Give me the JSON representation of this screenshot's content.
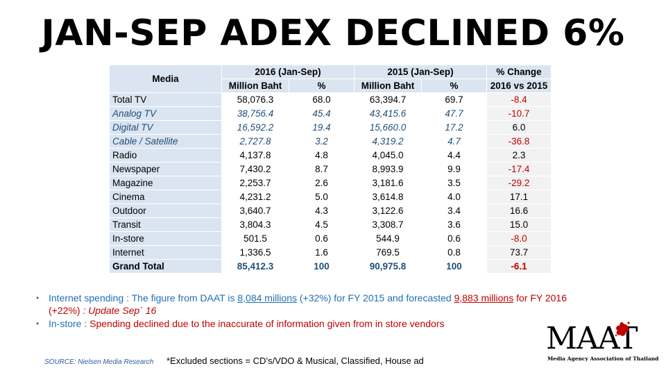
{
  "title": "JAN-SEP ADEX DECLINED 6%",
  "table": {
    "media_header": "Media",
    "group_2016": "2016 (Jan-Sep)",
    "group_2015": "2015 (Jan-Sep)",
    "change_header_1": "% Change",
    "change_header_2": "2016 vs 2015",
    "sub_million": "Million Baht",
    "sub_pct": "%",
    "rows": [
      {
        "media": "Total TV",
        "mb2016": "58,076.3",
        "p2016": "68.0",
        "mb2015": "63,394.7",
        "p2015": "69.7",
        "chg": "-8.4"
      },
      {
        "media": "Analog TV",
        "mb2016": "38,756.4",
        "p2016": "45.4",
        "mb2015": "43,415.6",
        "p2015": "47.7",
        "chg": "-10.7"
      },
      {
        "media": "Digital TV",
        "mb2016": "16,592.2",
        "p2016": "19.4",
        "mb2015": "15,660.0",
        "p2015": "17.2",
        "chg": "6.0"
      },
      {
        "media": "Cable / Satellite",
        "mb2016": "2,727.8",
        "p2016": "3.2",
        "mb2015": "4,319.2",
        "p2015": "4.7",
        "chg": "-36.8"
      },
      {
        "media": "Radio",
        "mb2016": "4,137.8",
        "p2016": "4.8",
        "mb2015": "4,045.0",
        "p2015": "4.4",
        "chg": "2.3"
      },
      {
        "media": "Newspaper",
        "mb2016": "7,430.2",
        "p2016": "8.7",
        "mb2015": "8,993.9",
        "p2015": "9.9",
        "chg": "-17.4"
      },
      {
        "media": "Magazine",
        "mb2016": "2,253.7",
        "p2016": "2.6",
        "mb2015": "3,181.6",
        "p2015": "3.5",
        "chg": "-29.2"
      },
      {
        "media": "Cinema",
        "mb2016": "4,231.2",
        "p2016": "5.0",
        "mb2015": "3,614.8",
        "p2015": "4.0",
        "chg": "17.1"
      },
      {
        "media": "Outdoor",
        "mb2016": "3,640.7",
        "p2016": "4.3",
        "mb2015": "3,122.6",
        "p2015": "3.4",
        "chg": "16.6"
      },
      {
        "media": "Transit",
        "mb2016": "3,804.3",
        "p2016": "4.5",
        "mb2015": "3,308.7",
        "p2015": "3.6",
        "chg": "15.0"
      },
      {
        "media": "In-store",
        "mb2016": "501.5",
        "p2016": "0.6",
        "mb2015": "544.9",
        "p2015": "0.6",
        "chg": "-8.0"
      },
      {
        "media": "Internet",
        "mb2016": "1,336.5",
        "p2016": "1.6",
        "mb2015": "769.5",
        "p2015": "0.8",
        "chg": "73.7"
      },
      {
        "media": "Grand Total",
        "mb2016": "85,412.3",
        "p2016": "100",
        "mb2015": "90,975.8",
        "p2015": "100",
        "chg": "-6.1"
      }
    ]
  },
  "notes": {
    "internet_label": "Internet spending",
    "internet_sep": " : The figure from DAAT is ",
    "internet_fig2015": "8,084 millions",
    "internet_mid": "  (+32%) for FY 2015 and forecasted ",
    "internet_fig2016": "9,883 millions",
    "internet_end": "  for FY 2016",
    "internet_line2": "(+22%) ",
    "internet_update": ": Update Sep´ 16",
    "instore_label": "In-store",
    "instore_sep": " : ",
    "instore_text": "Spending declined  due to the inaccurate of information given from in store vendors"
  },
  "source": "SOURCE: Nielsen Media Research",
  "excluded": "*Excluded sections = CD’s/VDO & Musical,  Classified,  House ad",
  "logo": {
    "text": "MAAT",
    "subtitle": "Media Agency Association of Thailand"
  },
  "colors": {
    "header_bg": "#dbe5f1",
    "negative": "#c00000",
    "subrow_text": "#1f4e79",
    "logo_splash": "#c00000"
  }
}
